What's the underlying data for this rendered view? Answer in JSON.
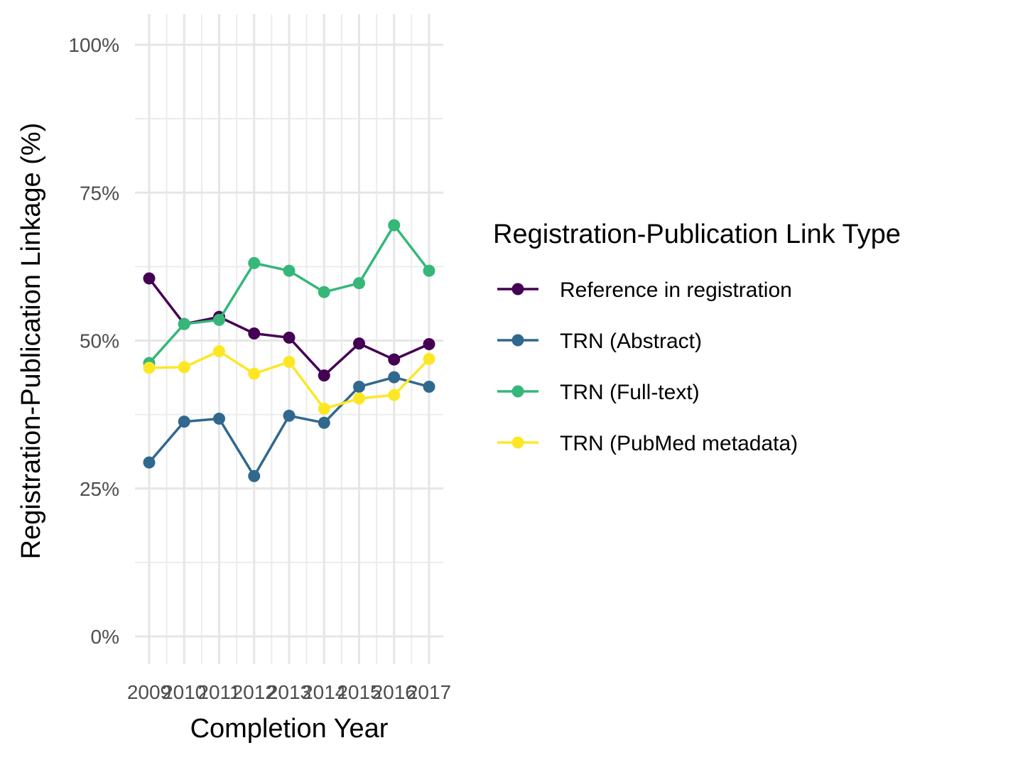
{
  "chart_data": {
    "type": "line",
    "title": "",
    "xlabel": "Completion Year",
    "ylabel": "Registration-Publication Linkage (%)",
    "x": [
      "2009",
      "2010",
      "2011",
      "2012",
      "2013",
      "2014",
      "2015",
      "2016",
      "2017"
    ],
    "ylim": [
      0,
      100
    ],
    "y_ticks": [
      "0%",
      "25%",
      "50%",
      "75%",
      "100%"
    ],
    "y_unit": "percent",
    "grid": true,
    "legend": {
      "title": "Registration-Publication Link Type",
      "placement": "right"
    },
    "series": [
      {
        "name": "Reference in registration",
        "color": "#440154",
        "values": [
          60.5,
          52.8,
          54.0,
          51.2,
          50.5,
          44.1,
          49.5,
          46.8,
          49.4
        ]
      },
      {
        "name": "TRN (Abstract)",
        "color": "#31688E",
        "values": [
          29.4,
          36.3,
          36.8,
          27.1,
          37.3,
          36.1,
          42.2,
          43.8,
          42.2
        ]
      },
      {
        "name": "TRN (Full-text)",
        "color": "#35B779",
        "values": [
          46.2,
          52.8,
          53.5,
          63.1,
          61.8,
          58.2,
          59.7,
          69.5,
          61.8
        ]
      },
      {
        "name": "TRN (PubMed metadata)",
        "color": "#FDE725",
        "values": [
          45.4,
          45.5,
          48.2,
          44.4,
          46.4,
          38.5,
          40.2,
          40.8,
          46.9
        ]
      }
    ]
  }
}
